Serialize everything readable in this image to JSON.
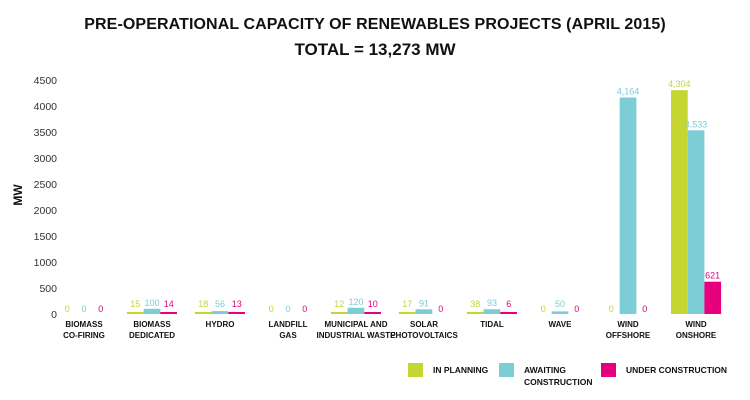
{
  "chart_data": {
    "type": "bar",
    "title": "PRE-OPERATIONAL CAPACITY OF RENEWABLES PROJECTS (APRIL 2015)",
    "subtitle": "TOTAL = 13,273 MW",
    "xlabel": "",
    "ylabel": "MW",
    "ylim": [
      0,
      4500
    ],
    "yticks": [
      "0",
      "500",
      "1000",
      "1500",
      "2000",
      "2500",
      "3000",
      "3500",
      "4000",
      "4500"
    ],
    "grid": false,
    "legend_position": "bottom-right",
    "categories": [
      [
        "BIOMASS",
        "CO-FIRING"
      ],
      [
        "BIOMASS",
        "DEDICATED"
      ],
      [
        "HYDRO"
      ],
      [
        "LANDFILL",
        "GAS"
      ],
      [
        "MUNICIPAL AND",
        "INDUSTRIAL WASTE"
      ],
      [
        "SOLAR",
        "PHOTOVOLTAICS"
      ],
      [
        "TIDAL"
      ],
      [
        "WAVE"
      ],
      [
        "WIND",
        "OFFSHORE"
      ],
      [
        "WIND",
        "ONSHORE"
      ]
    ],
    "series": [
      {
        "name": "IN PLANNING",
        "legend": [
          "IN PLANNING"
        ],
        "color": "#c5d632",
        "values": [
          0,
          15,
          18,
          0,
          12,
          17,
          38,
          0,
          0,
          4304
        ],
        "labels": [
          "0",
          "15",
          "18",
          "0",
          "12",
          "17",
          "38",
          "0",
          "0",
          "4,304"
        ]
      },
      {
        "name": "AWAITING CONSTRUCTION",
        "legend": [
          "AWAITING",
          "CONSTRUCTION"
        ],
        "color": "#7ccdd6",
        "values": [
          0,
          100,
          56,
          0,
          120,
          91,
          93,
          50,
          4164,
          3533
        ],
        "labels": [
          "0",
          "100",
          "56",
          "0",
          "120",
          "91",
          "93",
          "50",
          "4,164",
          "3,533"
        ]
      },
      {
        "name": "UNDER CONSTRUCTION",
        "legend": [
          "UNDER CONSTRUCTION"
        ],
        "color": "#e6007e",
        "values": [
          0,
          14,
          13,
          0,
          10,
          0,
          6,
          0,
          0,
          621
        ],
        "labels": [
          "0",
          "14",
          "13",
          "0",
          "10",
          "0",
          "6",
          "0",
          "0",
          "621"
        ]
      }
    ]
  }
}
